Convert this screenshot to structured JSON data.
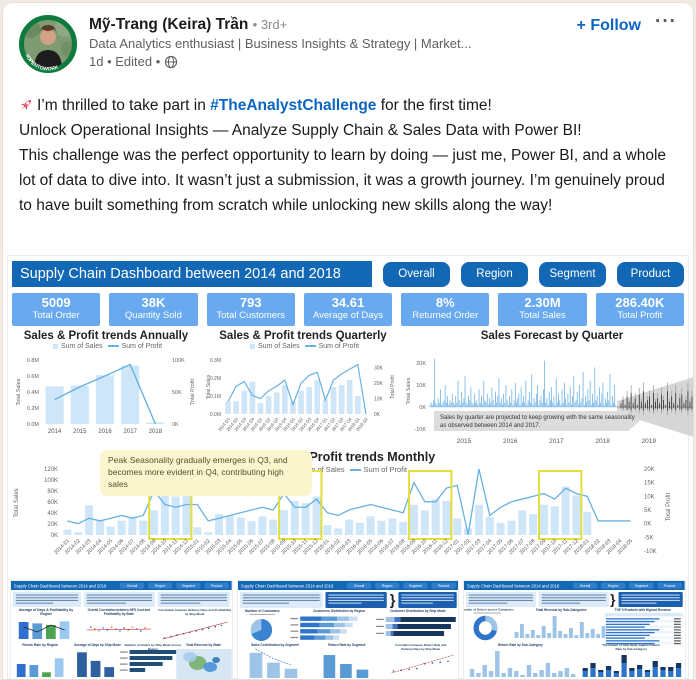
{
  "post": {
    "author": "Mỹ-Trang (Keira) Trần",
    "connection": "• 3rd+",
    "headline": "Data Analytics enthusiast | Business Insights & Strategy | Market...",
    "meta_time": "1d • Edited •",
    "follow_label": "+ Follow",
    "overflow_label": "···",
    "open_to_work_badge": "#OPENTOWORK",
    "body": {
      "line1_pre": "I’m thrilled to take part in ",
      "hashtag": "#TheAnalystChallenge",
      "line1_post": " for the first time!",
      "line2": "Unlock Operational Insights — Analyze Supply Chain & Sales Data with Power BI!",
      "rest": "This challenge was the perfect opportunity to learn by doing — just me, Power BI, and a whole lot of data to dive into. It wasn’t just a submission, it was a growth journey. I’m genuinely proud to have built something from scratch while unlocking new skills along the way!"
    }
  },
  "colors": {
    "linkedin_blue": "#0a66c2",
    "db_dark": "#1368b6",
    "kpi_blue": "#68a9ef",
    "bar_light": "#cfe6f8",
    "line_blue": "#68b1e2",
    "highlight_yellow": "#e3de3c",
    "callout_bg": "#fbf5cd"
  },
  "dashboard": {
    "title": "Supply Chain Dashboard between 2014 and 2018",
    "nav": [
      "Overall",
      "Region",
      "Segment",
      "Product"
    ],
    "kpis": [
      {
        "value": "5009",
        "label": "Total Order"
      },
      {
        "value": "38K",
        "label": "Quantity Sold"
      },
      {
        "value": "793",
        "label": "Total Customers"
      },
      {
        "value": "34.61",
        "label": "Average of Days"
      },
      {
        "value": "8%",
        "label": "Returned Order"
      },
      {
        "value": "2.30M",
        "label": "Total Sales"
      },
      {
        "value": "286.40K",
        "label": "Total Profit"
      }
    ]
  },
  "chart_data": [
    {
      "type": "bar+line",
      "title": "Sales & Profit trends Annually",
      "categories": [
        "2014",
        "2015",
        "2016",
        "2017",
        "2018"
      ],
      "series": [
        {
          "name": "Sum of Sales",
          "type": "bar",
          "axis": "left",
          "values": [
            0.47,
            0.48,
            0.61,
            0.73,
            0.02
          ]
        },
        {
          "name": "Sum of Profit",
          "type": "line",
          "axis": "right",
          "values": [
            38,
            58,
            75,
            93,
            0
          ]
        }
      ],
      "left_axis": {
        "label": "Total Sales",
        "ticks": [
          "0.0M",
          "0.2M",
          "0.4M",
          "0.6M",
          "0.8M"
        ],
        "max": 0.8
      },
      "right_axis": {
        "label": "Total Profit",
        "ticks": [
          "0K",
          "50K",
          "100K"
        ],
        "max": 100
      }
    },
    {
      "type": "bar+line",
      "title": "Sales & Profit trends Quarterly",
      "categories": [
        "2014 Q1",
        "2014 Q2",
        "2014 Q3",
        "2014 Q4",
        "2015 Q1",
        "2015 Q2",
        "2015 Q3",
        "2015 Q4",
        "2016 Q1",
        "2016 Q2",
        "2016 Q3",
        "2016 Q4",
        "2017 Q1",
        "2017 Q2",
        "2017 Q3",
        "2017 Q4",
        "2018 Q1",
        "2018 Q2"
      ],
      "series": [
        {
          "name": "Sum of Sales",
          "type": "bar",
          "axis": "left",
          "values": [
            0.07,
            0.07,
            0.13,
            0.18,
            0.06,
            0.1,
            0.12,
            0.16,
            0.07,
            0.13,
            0.15,
            0.19,
            0.08,
            0.15,
            0.16,
            0.19,
            0.1,
            0.0
          ]
        },
        {
          "name": "Sum of Profit",
          "type": "line",
          "axis": "right",
          "values": [
            8,
            18,
            21,
            12,
            10,
            15,
            18,
            22,
            6,
            20,
            25,
            27,
            9,
            22,
            26,
            29,
            32,
            0
          ]
        }
      ],
      "left_axis": {
        "label": "Total Sales",
        "ticks": [
          "0.0M",
          "0.1M",
          "0.2M",
          "0.3M"
        ],
        "max": 0.3
      },
      "right_axis": {
        "label": "Total Profit",
        "ticks": [
          "0K",
          "10K",
          "20K",
          "30K"
        ],
        "max": 35,
        "tick_vals": [
          0,
          10,
          20,
          30
        ]
      }
    },
    {
      "type": "line-forecast",
      "title": "Sales Forecast by Quarter",
      "left_axis": {
        "label": "Total Sales",
        "ticks": [
          "20K",
          "10K",
          "0K",
          "-10K"
        ],
        "tick_vals": [
          20,
          10,
          0,
          -10
        ]
      },
      "x_ticks": [
        "2015",
        "2016",
        "2017",
        "2018",
        "2019"
      ],
      "note_lines": [
        "Sales by quarter are projected to keep growing with the same seasonality",
        "as observed between 2014 and 2017."
      ],
      "history": [
        1,
        2,
        1,
        3,
        22,
        2,
        1,
        4,
        2,
        8,
        1,
        2,
        3,
        10,
        2,
        5,
        1,
        3,
        2,
        6,
        2,
        1,
        5,
        2,
        12,
        3,
        1,
        7,
        2,
        4,
        14,
        2,
        1,
        5,
        3,
        9,
        2,
        1,
        6,
        2,
        3,
        1,
        8,
        2,
        5,
        1,
        12,
        3,
        2,
        6,
        1,
        4,
        2,
        9,
        3,
        1,
        7,
        2,
        5,
        13,
        2,
        4,
        1,
        6,
        2,
        10,
        3,
        1,
        5,
        2,
        8,
        1,
        3,
        11,
        2,
        4,
        6,
        1,
        9,
        2,
        5,
        2,
        12,
        1,
        3,
        7,
        2,
        15,
        1,
        4,
        2,
        6,
        10,
        1,
        3,
        5,
        2,
        8,
        21,
        2,
        4,
        1,
        7,
        3,
        9,
        2,
        5,
        1,
        13,
        2,
        6,
        3,
        1,
        8,
        2,
        11,
        4,
        1,
        6,
        2,
        9,
        1,
        5,
        14,
        2,
        3,
        7,
        1,
        10,
        2,
        4,
        16,
        1,
        5,
        2,
        8,
        3,
        12,
        1,
        6,
        2,
        18,
        3,
        5,
        1,
        9,
        2,
        6,
        11,
        1,
        4,
        2,
        7,
        3,
        15,
        1,
        5,
        2,
        10,
        1
      ],
      "forecast": [
        2,
        4,
        1,
        6,
        3,
        8,
        2,
        5,
        1,
        7,
        3,
        9,
        2,
        4,
        6,
        1,
        8,
        3,
        5,
        2,
        7,
        4,
        1,
        9,
        3,
        6,
        2,
        8,
        1,
        5,
        7,
        2,
        4,
        9,
        3,
        6
      ]
    },
    {
      "type": "bar+line",
      "title": "Sales & Profit trends Monthly",
      "callout": "Peak Seasonality gradually emerges in Q3, and becomes more evident in Q4, contributing high sales",
      "categories": [
        "2014-01",
        "2014-02",
        "2014-03",
        "2014-04",
        "2014-05",
        "2014-06",
        "2014-07",
        "2014-08",
        "2014-09",
        "2014-10",
        "2014-11",
        "2014-12",
        "2015-01",
        "2015-02",
        "2015-03",
        "2015-04",
        "2015-05",
        "2015-06",
        "2015-07",
        "2015-08",
        "2015-09",
        "2015-10",
        "2015-11",
        "2015-12",
        "2016-01",
        "2016-02",
        "2016-03",
        "2016-04",
        "2016-05",
        "2016-06",
        "2016-07",
        "2016-08",
        "2016-09",
        "2016-10",
        "2016-11",
        "2016-12",
        "2017-01",
        "2017-02",
        "2017-03",
        "2017-04",
        "2017-05",
        "2017-06",
        "2017-07",
        "2017-08",
        "2017-09",
        "2017-10",
        "2017-11",
        "2017-12",
        "2018-01",
        "2018-02",
        "2018-03",
        "2018-04",
        "2018-05"
      ],
      "series": [
        {
          "name": "Sum of Sales",
          "type": "bar",
          "axis": "left",
          "values": [
            10,
            5,
            54,
            28,
            15,
            26,
            33,
            26,
            45,
            75,
            70,
            81,
            14,
            5,
            38,
            35,
            32,
            25,
            34,
            28,
            45,
            62,
            58,
            70,
            18,
            12,
            28,
            22,
            34,
            26,
            30,
            24,
            55,
            45,
            65,
            62,
            30,
            12,
            55,
            33,
            22,
            26,
            45,
            38,
            55,
            52,
            88,
            72,
            42,
            0,
            0,
            0,
            0
          ]
        },
        {
          "name": "Sum of Profit",
          "type": "line",
          "axis": "right",
          "values": [
            1,
            0,
            2,
            1,
            2,
            3,
            2,
            3,
            12,
            7,
            6,
            7,
            7,
            1,
            2,
            3,
            4,
            5,
            6,
            5,
            11,
            6,
            6,
            9,
            4,
            3,
            5,
            6,
            7,
            6,
            5,
            4,
            15,
            8,
            8,
            13,
            14,
            -4,
            20,
            3,
            6,
            8,
            9,
            10,
            11,
            9,
            13,
            11,
            10,
            1,
            1,
            1,
            1
          ]
        }
      ],
      "left_axis": {
        "label": "Total Sales",
        "ticks": [
          "0K",
          "20K",
          "40K",
          "60K",
          "80K",
          "100K",
          "120K"
        ],
        "max": 120
      },
      "right_axis": {
        "label": "Total Profit",
        "ticks": [
          "-10K",
          "-5K",
          "0K",
          "5K",
          "10K",
          "15K",
          "20K"
        ],
        "min": -10,
        "max": 20
      },
      "highlights": [
        [
          8,
          11
        ],
        [
          20,
          23
        ],
        [
          32,
          35
        ],
        [
          44,
          47
        ]
      ]
    }
  ],
  "thumbnails": [
    {
      "title": "Supply Chain Dashboard between 2014 and 2018",
      "charts": [
        [
          "Average of Days & Profitability by",
          "Region"
        ],
        [
          "Overall Correlation between NPS Cost and",
          "Profitability by State"
        ],
        [
          "Correlation between Delivery Days and Profitability",
          "by Ship Mode"
        ],
        [
          "Return Rate by Region"
        ],
        [
          "Average of Days by Ship Mode"
        ],
        [
          "Number of Orders by Ship Mode across",
          "Region"
        ],
        [
          "Total Revenue by State"
        ]
      ],
      "mini": {
        "days_region": [
          0.85,
          0.78,
          0.7,
          0.88
        ],
        "region_colors": [
          "#2e6fd0",
          "#5b9bd5",
          "#4ca353",
          "#9cc9f2"
        ],
        "days_line": [
          46,
          51,
          44,
          49
        ],
        "return_region": [
          0.5,
          0.46,
          0.18,
          0.72
        ],
        "days_mode": [
          0.95,
          0.62,
          0.38
        ],
        "orders_mode": [
          48,
          44,
          34,
          16
        ]
      }
    },
    {
      "title": "Supply Chain Dashboard between 2014 and 2018",
      "charts": [
        [
          "Number of Customers"
        ],
        [
          "Customers Distribution by Region"
        ],
        [
          "Customer Distribution by Ship Mode"
        ],
        [
          "Sales Contribution by Segment"
        ],
        [
          "Return Rate by Segment"
        ],
        [
          "Correlation between Return Rate and",
          "Delivery Days by Ship Mode"
        ]
      ],
      "mini": {
        "cust_region": [
          [
            22,
            16,
            12,
            9
          ],
          [
            20,
            15,
            11,
            8
          ],
          [
            18,
            13,
            10,
            7
          ],
          [
            15,
            11,
            8,
            6
          ]
        ],
        "cust_colors": [
          "#2e75c9",
          "#5b9bd5",
          "#9dc3e6",
          "#c9def2"
        ],
        "ship_dist": [
          [
            9,
            6,
            57
          ],
          [
            7,
            5,
            55
          ],
          [
            5,
            3,
            52
          ]
        ],
        "ship_colors": [
          "#9dc3e6",
          "#4472c4",
          "#17365d"
        ],
        "seg_sales": [
          0.9,
          0.55,
          0.33
        ],
        "seg_return": [
          0.82,
          0.5,
          0.3
        ]
      }
    },
    {
      "title": "Supply Chain Dashboard between 2014 and 2018",
      "charts": [
        [
          "Number of Orders across Categories"
        ],
        [
          "Total Revenue by Sub-Categories"
        ],
        [
          "TOP 5 Products with Highest Revenue"
        ],
        [
          "Return Rate by Sub-Category"
        ],
        [
          "The Impact of Ship Mode Against Return",
          "Rate by Sub-Category"
        ]
      ],
      "mini": {
        "subcat_rev": [
          6,
          14,
          4,
          8,
          3,
          12,
          5,
          22,
          7,
          4,
          10,
          3,
          16,
          5,
          9,
          4,
          12
        ],
        "subcat_ret": [
          8,
          4,
          12,
          6,
          26,
          4,
          9,
          6,
          2,
          12,
          4,
          7,
          14,
          4,
          6,
          9,
          3
        ],
        "ship_impact": [
          [
            6,
            3
          ],
          [
            9,
            5
          ],
          [
            5,
            2
          ],
          [
            7,
            4
          ],
          [
            4,
            2
          ],
          [
            14,
            8
          ],
          [
            6,
            3
          ],
          [
            8,
            4
          ],
          [
            5,
            2
          ],
          [
            10,
            6
          ],
          [
            7,
            3
          ],
          [
            6,
            4
          ],
          [
            9,
            5
          ]
        ]
      }
    }
  ]
}
